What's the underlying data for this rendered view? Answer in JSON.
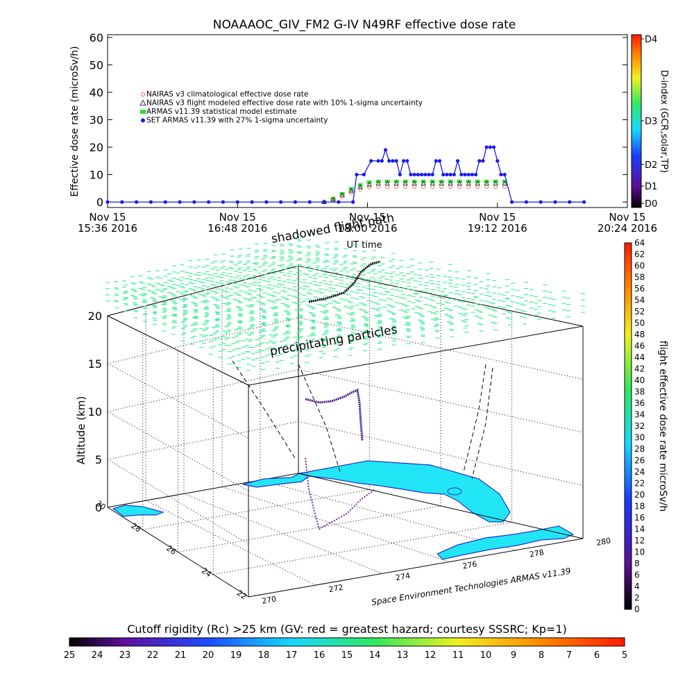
{
  "colors": {
    "nairas_clim": "#e07070",
    "nairas_flight": "#303030",
    "armas_model": "#33dd33",
    "set_armas": "#1a1aee",
    "sea": "#ffffff",
    "land": "#22e6f6",
    "coast": "#2233cc",
    "dose_tick": "#44ee99"
  },
  "top_chart": {
    "title": "NOAAAOC_GIV_FM2 G-IV   N49RF  effective dose rate",
    "ylabel": "Effective dose rate (microSv/h)",
    "xlabel": "UT time",
    "right_label": "D-index (GCR,solar,TP)",
    "yticks": [
      "0",
      "10",
      "20",
      "30",
      "40",
      "50",
      "60"
    ],
    "xticks": [
      {
        "line1": "Nov 15",
        "line2": "15:36 2016"
      },
      {
        "line1": "Nov 15",
        "line2": "16:48 2016"
      },
      {
        "line1": "Nov 15",
        "line2": "18:00 2016"
      },
      {
        "line1": "Nov 15",
        "line2": "19:12 2016"
      },
      {
        "line1": "Nov 15",
        "line2": "20:24 2016"
      }
    ],
    "dindex_labels": [
      "D0",
      "D1",
      "D2",
      "D3",
      "D4"
    ],
    "legend": [
      "NAIRAS v3 climatological effective dose rate",
      "NAIRAS v3 flight modeled effective dose rate with 10% 1-sigma uncertainty",
      "ARMAS v11.39 statistical model estimate",
      "SET ARMAS v11.39 with 27% 1-sigma uncertainty"
    ]
  },
  "chart_data": [
    {
      "type": "scatter",
      "title": "NOAAAOC_GIV_FM2 G-IV   N49RF  effective dose rate",
      "xlabel": "UT time",
      "ylabel": "Effective dose rate (microSv/h)",
      "x_unit": "minutes after Nov 15 2016 15:36 UT",
      "xlim": [
        0,
        288
      ],
      "ylim": [
        -2,
        61
      ],
      "series": [
        {
          "name": "NAIRAS v3 climatological effective dose rate",
          "x": [
            120,
            125,
            130,
            135,
            140,
            145,
            150,
            155,
            160,
            165,
            170,
            175,
            180,
            185,
            190,
            195,
            200,
            205,
            210,
            215,
            220
          ],
          "values": [
            0,
            0.8,
            2.0,
            3.4,
            4.6,
            5.4,
            5.5,
            5.5,
            5.5,
            5.5,
            5.5,
            5.5,
            5.5,
            5.5,
            5.5,
            5.5,
            5.5,
            5.5,
            5.5,
            5.5,
            5.5
          ]
        },
        {
          "name": "NAIRAS v3 flight modeled effective dose rate with 10% 1-sigma uncertainty",
          "x": [
            120,
            125,
            130,
            135,
            140,
            145,
            150,
            155,
            160,
            165,
            170,
            175,
            180,
            185,
            190,
            195,
            200,
            205,
            210,
            215,
            220
          ],
          "values": [
            0,
            1.0,
            2.6,
            4.2,
            5.5,
            6.4,
            6.8,
            6.8,
            6.8,
            6.8,
            6.8,
            6.8,
            6.8,
            6.8,
            6.8,
            6.8,
            6.8,
            6.8,
            6.8,
            6.8,
            6.8
          ]
        },
        {
          "name": "ARMAS v11.39 statistical model estimate",
          "x": [
            120,
            125,
            130,
            135,
            140,
            145,
            150,
            155,
            160,
            165,
            170,
            175,
            180,
            185,
            190,
            195,
            200,
            205,
            210,
            215,
            220
          ],
          "values": [
            0,
            1.2,
            3.0,
            4.8,
            6.2,
            7.2,
            7.5,
            7.5,
            7.5,
            7.5,
            7.5,
            7.5,
            7.5,
            7.5,
            7.5,
            7.5,
            7.5,
            7.5,
            7.5,
            7.5,
            7.5
          ]
        },
        {
          "name": "SET ARMAS v11.39 with 27% 1-sigma uncertainty",
          "x": [
            0,
            8,
            16,
            24,
            32,
            40,
            48,
            56,
            64,
            72,
            80,
            88,
            96,
            104,
            112,
            120,
            128,
            136,
            138,
            142,
            146,
            150,
            152,
            154,
            156,
            158,
            160,
            162,
            164,
            166,
            168,
            170,
            172,
            174,
            176,
            178,
            180,
            182,
            184,
            186,
            188,
            190,
            192,
            194,
            196,
            198,
            200,
            202,
            204,
            206,
            208,
            210,
            212,
            214,
            216,
            218,
            220,
            224,
            232,
            240,
            248,
            256,
            264
          ],
          "values": [
            0,
            0,
            0,
            0,
            0,
            0,
            0,
            0,
            0,
            0,
            0,
            0,
            0,
            0,
            0,
            0,
            0,
            0,
            10,
            10,
            15,
            15,
            15,
            19,
            15,
            15,
            15,
            10,
            15,
            15,
            10,
            10,
            10,
            10,
            10,
            10,
            10,
            15,
            15,
            10,
            10,
            10,
            10,
            15,
            10,
            10,
            10,
            10,
            10,
            15,
            15,
            20,
            20,
            20,
            15,
            10,
            10,
            0,
            0,
            0,
            0,
            0,
            0
          ]
        }
      ]
    },
    {
      "type": "scatter",
      "title": "",
      "zlabel": "Altitude (km)",
      "zlim": [
        0,
        20
      ],
      "lon_ticks": [
        "270",
        "272",
        "274",
        "276",
        "278",
        "280"
      ],
      "lat_ticks": [
        "22",
        "24",
        "26",
        "28",
        "30"
      ],
      "alt_ticks": [
        "0",
        "5",
        "10",
        "15",
        "20"
      ],
      "colorbar_label": "flight effective dose rate microSv/h",
      "colorbar_ticks": [
        "0",
        "2",
        "4",
        "6",
        "8",
        "10",
        "12",
        "14",
        "16",
        "18",
        "20",
        "22",
        "24",
        "26",
        "28",
        "30",
        "32",
        "34",
        "36",
        "38",
        "40",
        "42",
        "44",
        "46",
        "48",
        "50",
        "52",
        "54",
        "56",
        "58",
        "60",
        "62",
        "64"
      ],
      "annotations": [
        "shadowed flight path",
        "precipitating particles"
      ],
      "credit": "Space Environment Technologies ARMAS v11.39"
    }
  ],
  "bottom_colorbar": {
    "title": "Cutoff rigidity (Rc) >25 km (GV: red = greatest hazard; courtesy SSSRC; Kp=1)",
    "ticks": [
      "25",
      "24",
      "23",
      "22",
      "21",
      "20",
      "19",
      "18",
      "17",
      "16",
      "15",
      "14",
      "13",
      "12",
      "11",
      "10",
      "9",
      "8",
      "7",
      "6",
      "5"
    ]
  },
  "labels": {
    "ann1": "shadowed flight path",
    "ann2": "precipitating particles",
    "credit": "Space Environment Technologies ARMAS v11.39",
    "alt_label": "Altitude (km)",
    "dose_bar_label": "flight effective dose rate microSv/h"
  }
}
